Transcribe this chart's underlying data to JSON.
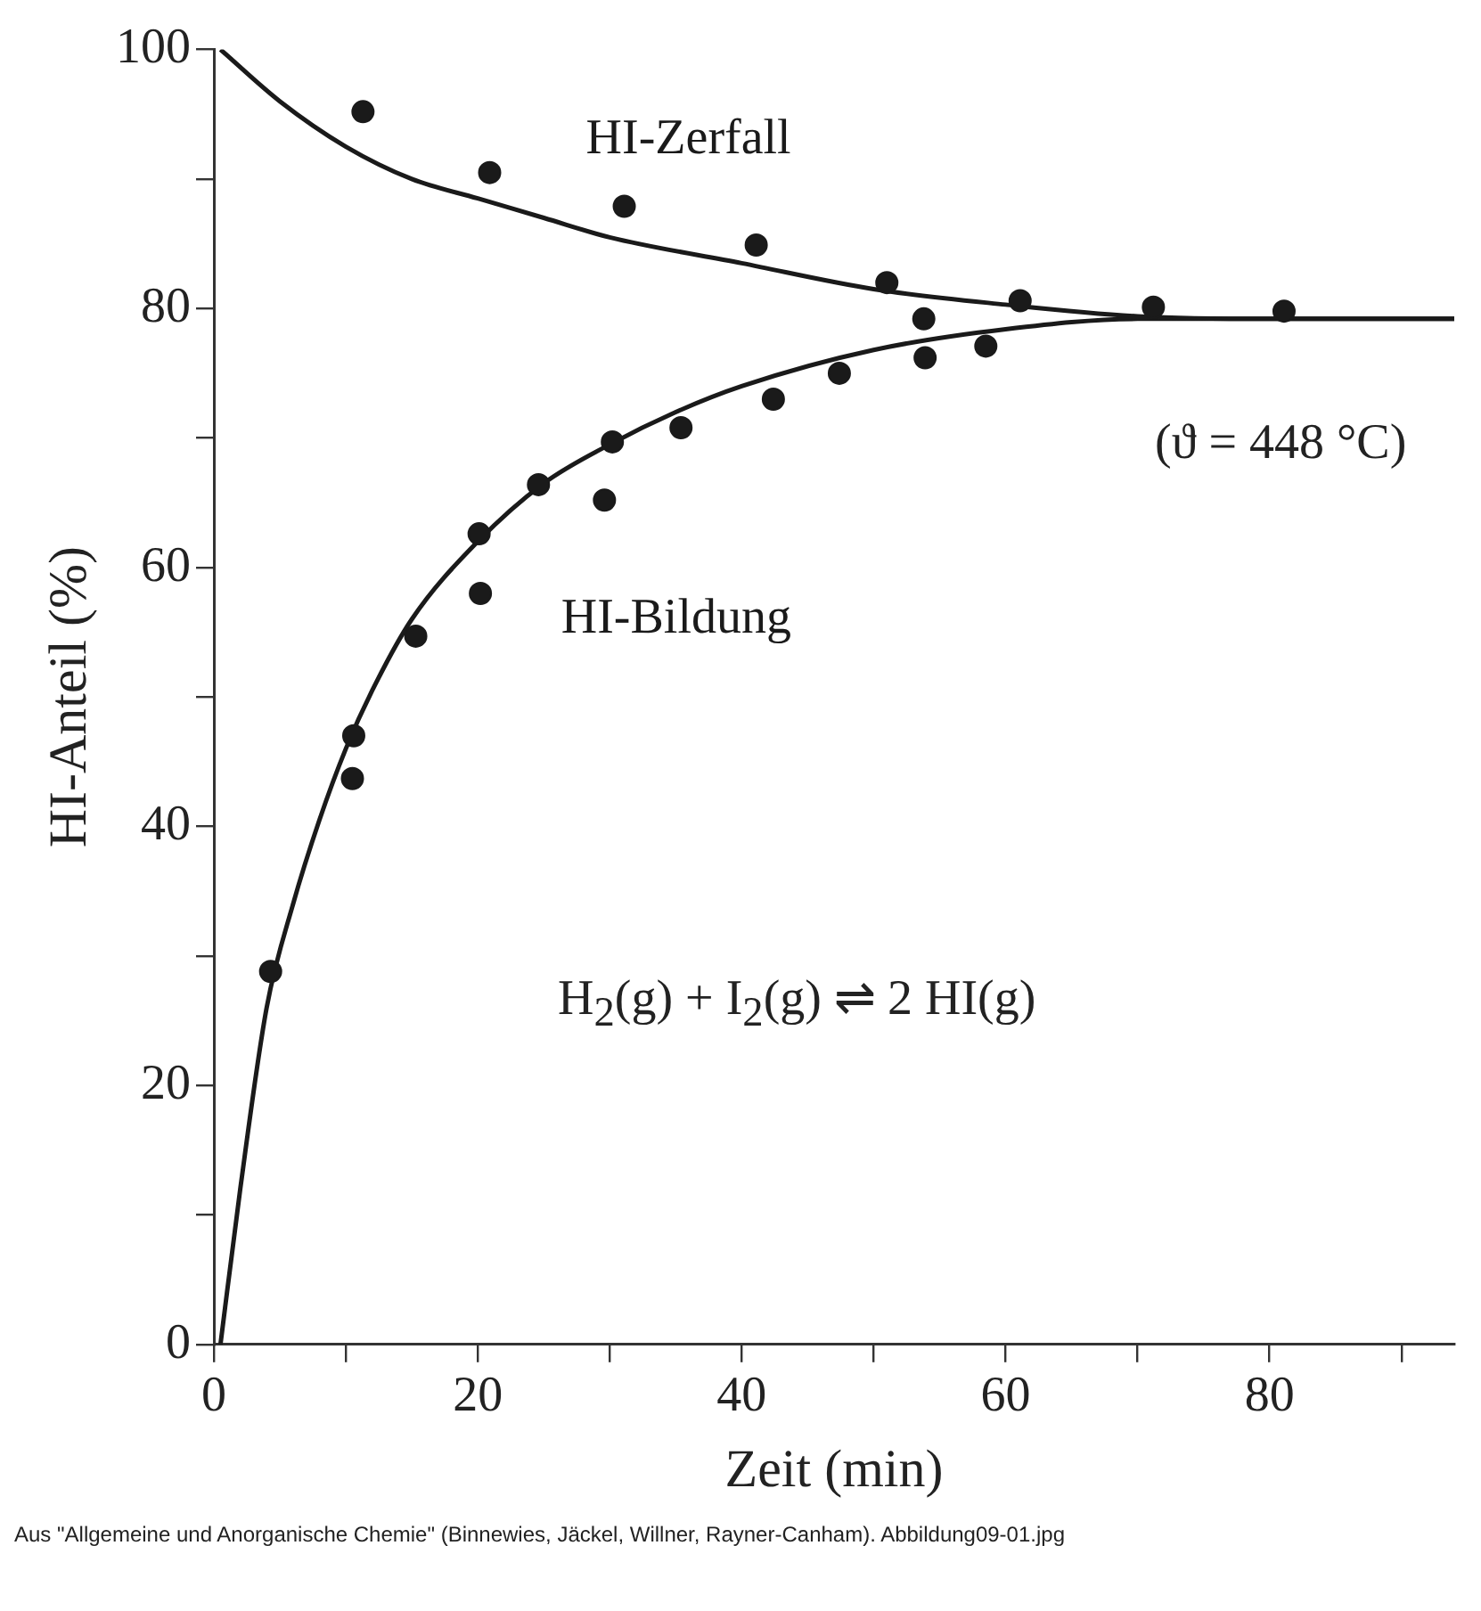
{
  "chart_data": {
    "type": "scatter",
    "xlabel": "Zeit (min)",
    "ylabel": "HI-Anteil (%)",
    "xlim": [
      0,
      94
    ],
    "ylim": [
      0,
      100
    ],
    "xticks": [
      0,
      {
        "value": 10,
        "label": null
      },
      20,
      {
        "value": 30,
        "label": null
      },
      40,
      {
        "value": 50,
        "label": null
      },
      60,
      {
        "value": 70,
        "label": null
      },
      80,
      {
        "value": 90,
        "label": null
      }
    ],
    "yticks": [
      0,
      {
        "value": 10,
        "label": null
      },
      20,
      {
        "value": 30,
        "label": null
      },
      40,
      {
        "value": 50,
        "label": null
      },
      60,
      {
        "value": 70,
        "label": null
      },
      80,
      {
        "value": 90,
        "label": null
      },
      100
    ],
    "grid": false,
    "legend": false,
    "series": [
      {
        "marker": "circle",
        "color": "#1a1a1a",
        "x": [
          11.3,
          20.9,
          31.1,
          41.1,
          51.0,
          61.1,
          71.2,
          81.1
        ],
        "values": [
          95.2,
          90.5,
          87.9,
          84.9,
          82.0,
          80.6,
          80.1,
          79.8
        ]
      },
      {
        "marker": "circle",
        "color": "#1a1a1a",
        "x": [
          4.3,
          10.5,
          10.6,
          15.3,
          20.2,
          20.1,
          24.6,
          29.6,
          30.2,
          35.4,
          42.4,
          47.4,
          53.8,
          53.9,
          58.5
        ],
        "values": [
          28.8,
          43.7,
          47.0,
          54.7,
          58.0,
          62.6,
          66.4,
          65.2,
          69.7,
          70.8,
          73.0,
          75.0,
          79.2,
          76.2,
          77.1
        ]
      },
      {
        "type": "line",
        "name": "HI-Zerfall",
        "marker": "none",
        "line_style": "solid",
        "color": "#1a1a1a",
        "x": [
          0.5,
          5,
          10,
          15,
          20,
          25,
          30,
          40,
          50,
          60,
          70,
          80,
          94
        ],
        "values": [
          100,
          96,
          92.5,
          90,
          88.5,
          87,
          85.5,
          83.5,
          81.5,
          80.3,
          79.4,
          79.2,
          79.2
        ]
      },
      {
        "type": "line",
        "name": "HI-Bildung",
        "marker": "none",
        "line_style": "solid",
        "color": "#1a1a1a",
        "x": [
          0.5,
          2,
          4,
          6,
          8,
          10,
          12,
          15,
          20,
          25,
          30,
          35,
          40,
          50,
          60,
          70,
          80,
          94
        ],
        "values": [
          0,
          12,
          26,
          34,
          40.5,
          46,
          50.5,
          56,
          62,
          66.5,
          69.5,
          72,
          74,
          76.8,
          78.4,
          79.2,
          79.2,
          79.2
        ]
      }
    ],
    "annotations": [
      "(ϑ = 448 °C)",
      "H$_{2}$(g) + I$_{2}$(g) ⇌ 2 HI(g)",
      "Aus \"Allgemeine und Anorganische Chemie\" (Binnewies, Jäckel, Willner, Rayner-Canham). Abbildung09-01.jpg"
    ]
  }
}
